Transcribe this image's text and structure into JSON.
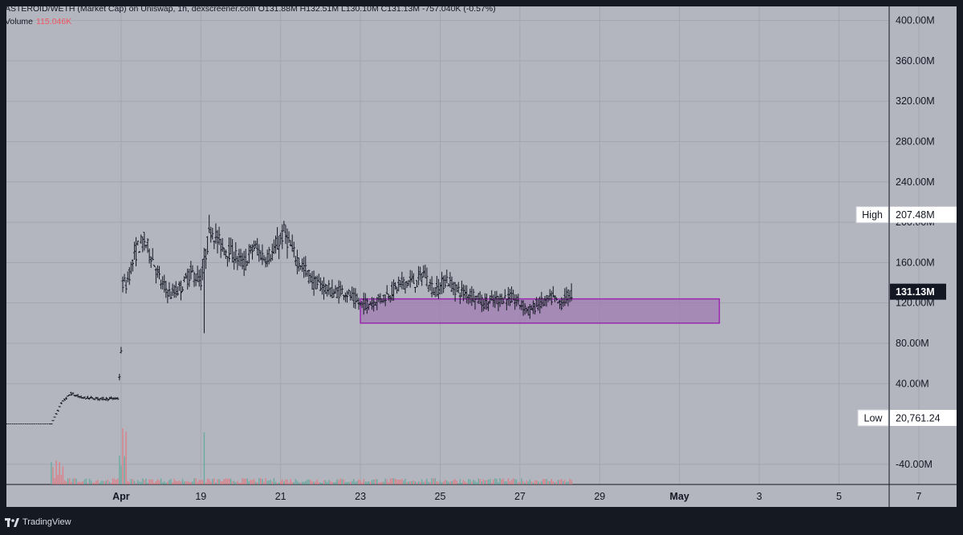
{
  "header": {
    "title_line": "ASTEROID/WETH (Market Cap) on Uniswap, 1h, dexscreener.com  O131.88M  H132.51M  L130.10M  C131.13M  -757.040K (-0.57%)",
    "volume_label": "Volume",
    "volume_value": "115.046K"
  },
  "footer": {
    "brand": "TradingView"
  },
  "colors": {
    "background": "#b3b6bf",
    "frame": "#151921",
    "candle": "#131722",
    "volume_up": "#5fa89b",
    "volume_down": "#e2777f",
    "zone_fill": "#a07bb3",
    "zone_stroke": "#9c27b0",
    "grid": "#a3a6b0",
    "axis_text": "#131722"
  },
  "chart_data": {
    "type": "candlestick",
    "title": "ASTEROID/WETH (Market Cap) on Uniswap, 1h, dexscreener.com",
    "x_ticks": [
      "Apr",
      "19",
      "21",
      "23",
      "25",
      "27",
      "29",
      "May",
      "3",
      "5",
      "7"
    ],
    "y_ticks": [
      "400.00M",
      "360.00M",
      "320.00M",
      "280.00M",
      "240.00M",
      "200.00M",
      "160.00M",
      "120.00M",
      "80.00M",
      "40.00M",
      "-40.00M"
    ],
    "y_range_millions": [
      -60,
      414
    ],
    "ohlc_last": {
      "open": "131.88M",
      "high": "132.51M",
      "low": "130.10M",
      "close": "131.13M",
      "change": "-757.040K (-0.57%)"
    },
    "last_price_label": "131.13M",
    "high_marker": {
      "label": "High",
      "value": "207.48M"
    },
    "low_marker": {
      "label": "Low",
      "value": "20,761.24"
    },
    "zone": {
      "x_start": "Apr 25",
      "x_end": "May 4",
      "y_low_millions": 100,
      "y_high_millions": 124
    },
    "market_cap_path_millions": [
      [
        "Apr 17 06:00",
        0.02
      ],
      [
        "Apr 17 12:00",
        20
      ],
      [
        "Apr 17 14:00",
        24
      ],
      [
        "Apr 17 18:00",
        30
      ],
      [
        "Apr 18 00:00",
        26
      ],
      [
        "Apr 18 12:00",
        25
      ],
      [
        "Apr 18 22:00",
        25
      ],
      [
        "Apr 19 00:00",
        70
      ],
      [
        "Apr 19 01:00",
        140
      ],
      [
        "Apr 19 03:00",
        138
      ],
      [
        "Apr 19 06:00",
        155
      ],
      [
        "Apr 19 10:00",
        175
      ],
      [
        "Apr 19 14:00",
        182
      ],
      [
        "Apr 19 18:00",
        168
      ],
      [
        "Apr 20 00:00",
        140
      ],
      [
        "Apr 20 06:00",
        128
      ],
      [
        "Apr 20 12:00",
        135
      ],
      [
        "Apr 20 18:00",
        150
      ],
      [
        "Apr 21 00:00",
        142
      ],
      [
        "Apr 21 04:00",
        178
      ],
      [
        "Apr 21 06:00",
        195
      ],
      [
        "Apr 21 10:00",
        182
      ],
      [
        "Apr 21 14:00",
        174
      ],
      [
        "Apr 21 20:00",
        168
      ],
      [
        "Apr 22 02:00",
        158
      ],
      [
        "Apr 22 08:00",
        176
      ],
      [
        "Apr 22 14:00",
        165
      ],
      [
        "Apr 22 20:00",
        170
      ],
      [
        "Apr 23 02:00",
        190
      ],
      [
        "Apr 23 08:00",
        168
      ],
      [
        "Apr 23 14:00",
        155
      ],
      [
        "Apr 23 20:00",
        140
      ],
      [
        "Apr 24 02:00",
        136
      ],
      [
        "Apr 24 08:00",
        130
      ],
      [
        "Apr 24 14:00",
        132
      ],
      [
        "Apr 24 20:00",
        124
      ],
      [
        "Apr 25 00:00",
        118
      ],
      [
        "Apr 25 06:00",
        120
      ],
      [
        "Apr 25 12:00",
        124
      ],
      [
        "Apr 25 18:00",
        130
      ],
      [
        "Apr 26 00:00",
        138
      ],
      [
        "Apr 26 06:00",
        142
      ],
      [
        "Apr 26 10:00",
        140
      ],
      [
        "Apr 26 14:00",
        150
      ],
      [
        "Apr 26 18:00",
        138
      ],
      [
        "Apr 26 20:00",
        132
      ],
      [
        "Apr 27 00:00",
        136
      ],
      [
        "Apr 27 04:00",
        144
      ],
      [
        "Apr 27 08:00",
        135
      ],
      [
        "Apr 27 14:00",
        130
      ],
      [
        "Apr 27 20:00",
        128
      ],
      [
        "Apr 28 02:00",
        120
      ],
      [
        "Apr 28 08:00",
        122
      ],
      [
        "Apr 28 14:00",
        125
      ],
      [
        "Apr 28 20:00",
        124
      ],
      [
        "Apr 29 02:00",
        117
      ],
      [
        "Apr 29 06:00",
        112
      ],
      [
        "Apr 29 10:00",
        118
      ],
      [
        "Apr 29 16:00",
        122
      ],
      [
        "Apr 29 20:00",
        125
      ],
      [
        "Apr 30 00:00",
        118
      ],
      [
        "Apr 30 04:00",
        126
      ],
      [
        "Apr 30 08:00",
        131
      ]
    ]
  }
}
